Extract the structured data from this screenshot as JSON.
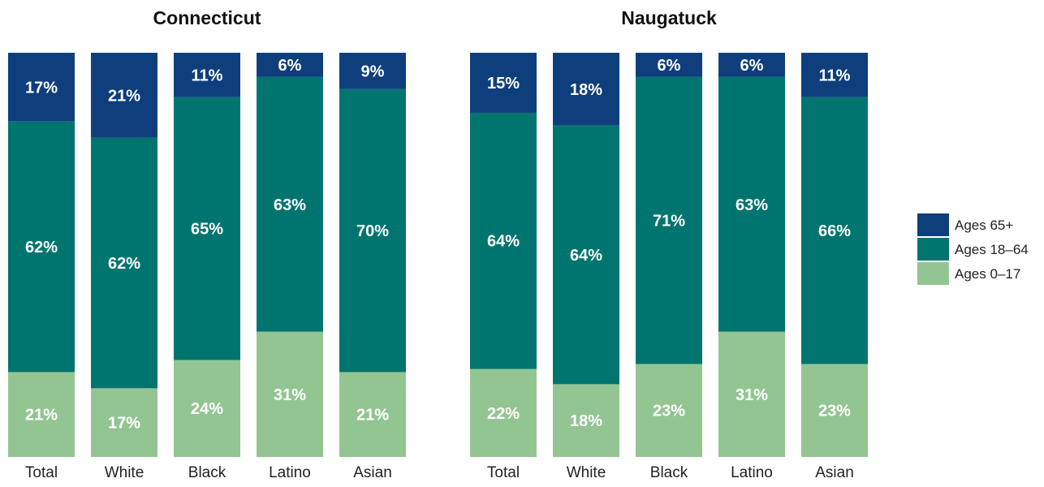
{
  "chart_data": {
    "type": "bar",
    "stacked": true,
    "percent_stacked": true,
    "categories": [
      "Total",
      "White",
      "Black",
      "Latino",
      "Asian"
    ],
    "legend": {
      "position": "right",
      "entries": [
        {
          "label": "Ages 65+",
          "color": "#0e3f7c"
        },
        {
          "label": "Ages 18–64",
          "color": "#007570"
        },
        {
          "label": "Ages 0–17",
          "color": "#93c593"
        }
      ]
    },
    "ylim": [
      0,
      100
    ],
    "grid": false,
    "panels": [
      {
        "title": "Connecticut",
        "series": [
          {
            "name": "Ages 0–17",
            "color": "#93c593",
            "values": [
              21,
              17,
              24,
              31,
              21
            ],
            "labels": [
              "21%",
              "17%",
              "24%",
              "31%",
              "21%"
            ]
          },
          {
            "name": "Ages 18–64",
            "color": "#007570",
            "values": [
              62,
              62,
              65,
              63,
              70
            ],
            "labels": [
              "62%",
              "62%",
              "65%",
              "63%",
              "70%"
            ]
          },
          {
            "name": "Ages 65+",
            "color": "#0e3f7c",
            "values": [
              17,
              21,
              11,
              6,
              9
            ],
            "labels": [
              "17%",
              "21%",
              "11%",
              "6%",
              "9%"
            ]
          }
        ]
      },
      {
        "title": "Naugatuck",
        "series": [
          {
            "name": "Ages 0–17",
            "color": "#93c593",
            "values": [
              22,
              18,
              23,
              31,
              23
            ],
            "labels": [
              "22%",
              "18%",
              "23%",
              "31%",
              "23%"
            ]
          },
          {
            "name": "Ages 18–64",
            "color": "#007570",
            "values": [
              64,
              64,
              71,
              63,
              66
            ],
            "labels": [
              "64%",
              "64%",
              "71%",
              "63%",
              "66%"
            ]
          },
          {
            "name": "Ages 65+",
            "color": "#0e3f7c",
            "values": [
              15,
              18,
              6,
              6,
              11
            ],
            "labels": [
              "15%",
              "18%",
              "6%",
              "6%",
              "11%"
            ]
          }
        ]
      }
    ]
  }
}
